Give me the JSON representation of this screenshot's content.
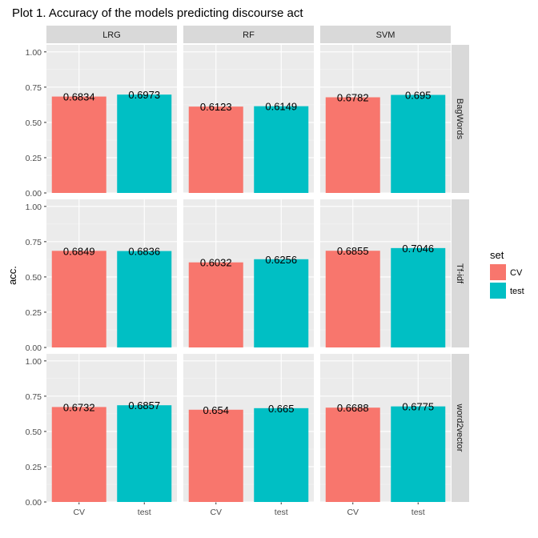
{
  "chart_data": {
    "type": "bar",
    "title": "Plot 1. Accuracy of the models predicting discourse act",
    "xlabel": "",
    "ylabel": "acc.",
    "ylim": [
      0,
      1.05
    ],
    "yticks": [
      "0.00",
      "0.25",
      "0.50",
      "0.75",
      "1.00"
    ],
    "ytick_values": [
      0,
      0.25,
      0.5,
      0.75,
      1.0
    ],
    "categories": [
      "CV",
      "test"
    ],
    "facet_columns": [
      "LRG",
      "RF",
      "SVM"
    ],
    "facet_rows": [
      "BagWords",
      "Tf-idf",
      "word2vector"
    ],
    "legend": {
      "title": "set",
      "placement": "right",
      "entries": [
        {
          "label": "CV",
          "color": "#F8766D"
        },
        {
          "label": "test",
          "color": "#00BFC4"
        }
      ]
    },
    "grid": true,
    "panels": [
      {
        "row": "BagWords",
        "col": "LRG",
        "values": [
          0.6834,
          0.6973
        ],
        "labels": [
          "0.6834",
          "0.6973"
        ]
      },
      {
        "row": "BagWords",
        "col": "RF",
        "values": [
          0.6123,
          0.6149
        ],
        "labels": [
          "0.6123",
          "0.6149"
        ]
      },
      {
        "row": "BagWords",
        "col": "SVM",
        "values": [
          0.6782,
          0.695
        ],
        "labels": [
          "0.6782",
          "0.695"
        ]
      },
      {
        "row": "Tf-idf",
        "col": "LRG",
        "values": [
          0.6849,
          0.6836
        ],
        "labels": [
          "0.6849",
          "0.6836"
        ]
      },
      {
        "row": "Tf-idf",
        "col": "RF",
        "values": [
          0.6032,
          0.6256
        ],
        "labels": [
          "0.6032",
          "0.6256"
        ]
      },
      {
        "row": "Tf-idf",
        "col": "SVM",
        "values": [
          0.6855,
          0.7046
        ],
        "labels": [
          "0.6855",
          "0.7046"
        ]
      },
      {
        "row": "word2vector",
        "col": "LRG",
        "values": [
          0.6732,
          0.6857
        ],
        "labels": [
          "0.6732",
          "0.6857"
        ]
      },
      {
        "row": "word2vector",
        "col": "RF",
        "values": [
          0.654,
          0.665
        ],
        "labels": [
          "0.654",
          "0.665"
        ]
      },
      {
        "row": "word2vector",
        "col": "SVM",
        "values": [
          0.6688,
          0.6775
        ],
        "labels": [
          "0.6688",
          "0.6775"
        ]
      }
    ]
  }
}
